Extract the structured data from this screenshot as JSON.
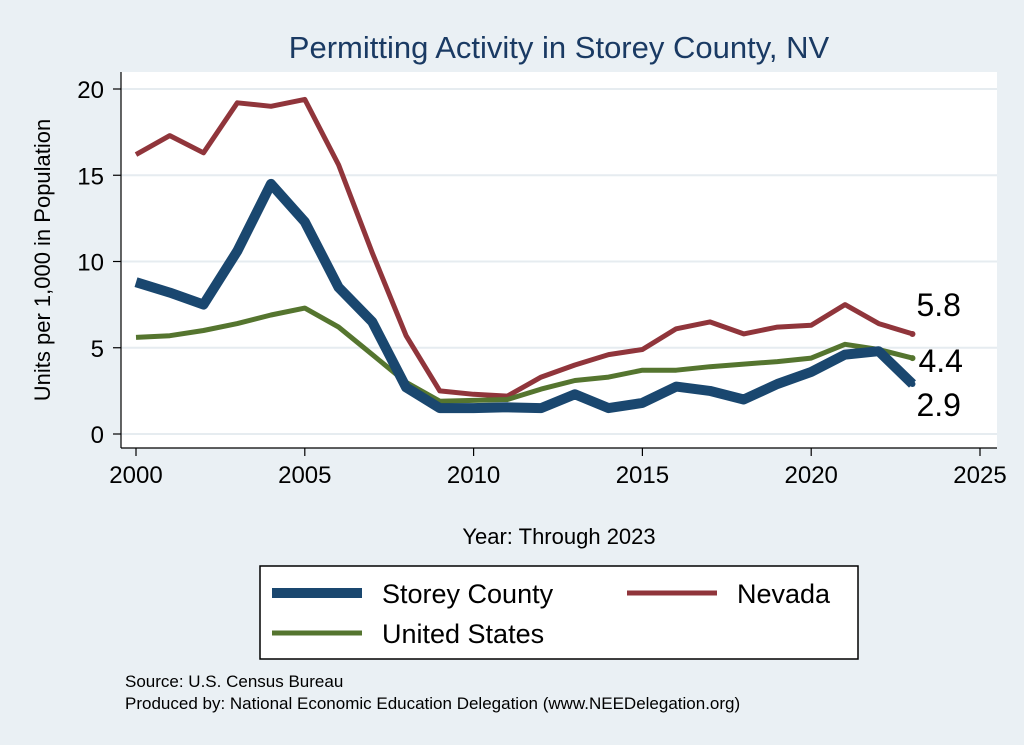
{
  "chart_data": {
    "type": "line",
    "title": "Permitting Activity in Storey County, NV",
    "xlabel": "Year: Through 2023",
    "ylabel": "Units per 1,000 in Population",
    "xlim": [
      2000,
      2025
    ],
    "ylim": [
      0,
      20
    ],
    "xticks": [
      2000,
      2005,
      2010,
      2015,
      2020,
      2025
    ],
    "yticks": [
      0,
      5,
      10,
      15,
      20
    ],
    "grid": true,
    "legend_position": "bottom",
    "x": [
      2000,
      2001,
      2002,
      2003,
      2004,
      2005,
      2006,
      2007,
      2008,
      2009,
      2010,
      2011,
      2012,
      2013,
      2014,
      2015,
      2016,
      2017,
      2018,
      2019,
      2020,
      2021,
      2022,
      2023
    ],
    "series": [
      {
        "name": "Storey County",
        "color": "#1a476f",
        "values": [
          8.8,
          8.2,
          7.5,
          10.6,
          14.5,
          12.3,
          8.5,
          6.5,
          2.7,
          1.5,
          1.5,
          1.55,
          1.5,
          2.3,
          1.5,
          1.8,
          2.75,
          2.5,
          2.0,
          2.9,
          3.6,
          4.6,
          4.8,
          2.9
        ],
        "end_label": "2.9"
      },
      {
        "name": "Nevada",
        "color": "#90353b",
        "values": [
          16.2,
          17.3,
          16.3,
          19.2,
          19.0,
          19.4,
          15.6,
          10.5,
          5.7,
          2.5,
          2.3,
          2.2,
          3.3,
          4.0,
          4.6,
          4.9,
          6.1,
          6.5,
          5.8,
          6.2,
          6.3,
          7.5,
          6.4,
          5.8
        ],
        "end_label": "5.8"
      },
      {
        "name": "United States",
        "color": "#55752f",
        "values": [
          5.6,
          5.7,
          6.0,
          6.4,
          6.9,
          7.3,
          6.2,
          4.6,
          3.0,
          1.9,
          1.95,
          2.0,
          2.6,
          3.1,
          3.3,
          3.7,
          3.7,
          3.9,
          4.05,
          4.2,
          4.4,
          5.2,
          4.9,
          4.4
        ],
        "end_label": "4.4"
      }
    ]
  },
  "legend": {
    "items": [
      {
        "label": "Storey County",
        "color": "#1a476f"
      },
      {
        "label": "Nevada",
        "color": "#90353b"
      },
      {
        "label": "United States",
        "color": "#55752f"
      }
    ]
  },
  "footer": {
    "source": "Source: U.S. Census Bureau",
    "produced_by": "Produced by: National Economic Education Delegation (www.NEEDelegation.org)"
  }
}
